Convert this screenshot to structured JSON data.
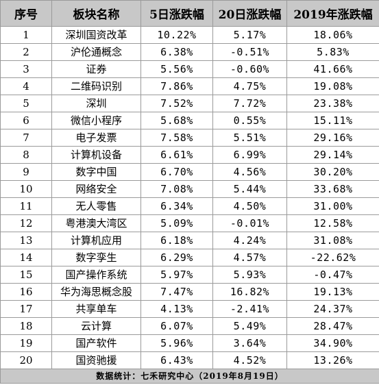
{
  "headers": [
    "序号",
    "板块名称",
    "5日涨跌幅",
    "20日涨跌幅",
    "2019年涨跌幅"
  ],
  "rows": [
    [
      "1",
      "深圳国资改革",
      "10.22%",
      "5.17%",
      "18.06%"
    ],
    [
      "2",
      "沪伦通概念",
      "6.38%",
      "-0.51%",
      "5.83%"
    ],
    [
      "3",
      "证券",
      "5.56%",
      "-0.60%",
      "41.66%"
    ],
    [
      "4",
      "二维码识别",
      "7.86%",
      "4.75%",
      "19.08%"
    ],
    [
      "5",
      "深圳",
      "7.52%",
      "7.72%",
      "23.38%"
    ],
    [
      "6",
      "微信小程序",
      "5.68%",
      "0.55%",
      "15.11%"
    ],
    [
      "7",
      "电子发票",
      "7.58%",
      "5.51%",
      "29.16%"
    ],
    [
      "8",
      "计算机设备",
      "6.61%",
      "6.99%",
      "29.14%"
    ],
    [
      "9",
      "数字中国",
      "6.70%",
      "4.56%",
      "30.20%"
    ],
    [
      "10",
      "网络安全",
      "7.08%",
      "5.44%",
      "33.68%"
    ],
    [
      "11",
      "无人零售",
      "6.34%",
      "4.50%",
      "31.00%"
    ],
    [
      "12",
      "粤港澳大湾区",
      "5.09%",
      "-0.01%",
      "12.58%"
    ],
    [
      "13",
      "计算机应用",
      "6.18%",
      "4.24%",
      "31.08%"
    ],
    [
      "14",
      "数字孪生",
      "6.29%",
      "4.57%",
      "-22.62%"
    ],
    [
      "15",
      "国产操作系统",
      "5.97%",
      "5.93%",
      "-0.47%"
    ],
    [
      "16",
      "华为海思概念股",
      "7.47%",
      "16.82%",
      "19.13%"
    ],
    [
      "17",
      "共享单车",
      "4.13%",
      "-2.41%",
      "24.37%"
    ],
    [
      "18",
      "云计算",
      "6.07%",
      "5.49%",
      "28.47%"
    ],
    [
      "19",
      "国产软件",
      "5.96%",
      "3.64%",
      "34.90%"
    ],
    [
      "20",
      "国资驰援",
      "6.43%",
      "4.52%",
      "13.26%"
    ]
  ],
  "footer": "数据统计：七禾研究中心（2019年8月19日）"
}
